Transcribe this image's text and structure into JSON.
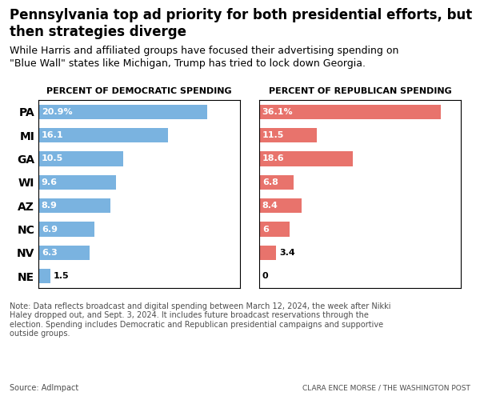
{
  "title": "Pennsylvania top ad priority for both presidential efforts, but\nthen strategies diverge",
  "subtitle": "While Harris and affiliated groups have focused their advertising spending on\n\"Blue Wall\" states like Michigan, Trump has tried to lock down Georgia.",
  "annotations": [
    "Note: Data reflects broadcast and digital spending between March 12, 2024, the week after Nikki\nHaley dropped out, and Sept. 3, 2024. It includes future broadcast reservations through the\nelection. Spending includes Democratic and Republican presidential campaigns and supportive\noutside groups.",
    "Source: AdImpact",
    "CLARA ENCE MORSE / THE WASHINGTON POST"
  ],
  "chart_data": [
    {
      "type": "bar",
      "orientation": "horizontal",
      "title": "PERCENT OF DEMOCRATIC SPENDING",
      "categories": [
        "PA",
        "MI",
        "GA",
        "WI",
        "AZ",
        "NC",
        "NV",
        "NE"
      ],
      "values": [
        20.9,
        16.1,
        10.5,
        9.6,
        8.9,
        6.9,
        6.3,
        1.5
      ],
      "value_labels": [
        "20.9%",
        "16.1",
        "10.5",
        "9.6",
        "8.9",
        "6.9",
        "6.3",
        "1.5"
      ],
      "color": "#7ab3e0",
      "xlim": [
        0,
        25
      ],
      "xticks": [],
      "data_labels": true,
      "tick_labels": "y"
    },
    {
      "type": "bar",
      "orientation": "horizontal",
      "title": "PERCENT OF REPUBLICAN SPENDING",
      "categories": [
        "PA",
        "MI",
        "GA",
        "WI",
        "AZ",
        "NC",
        "NV",
        "NE"
      ],
      "values": [
        36.1,
        11.5,
        18.6,
        6.8,
        8.4,
        6.0,
        3.4,
        0.0
      ],
      "value_labels": [
        "36.1%",
        "11.5",
        "18.6",
        "6.8",
        "8.4",
        "6",
        "3.4",
        "0"
      ],
      "color": "#e8736c",
      "xlim": [
        0,
        40
      ],
      "xticks": [],
      "data_labels": true,
      "tick_labels": false
    }
  ]
}
